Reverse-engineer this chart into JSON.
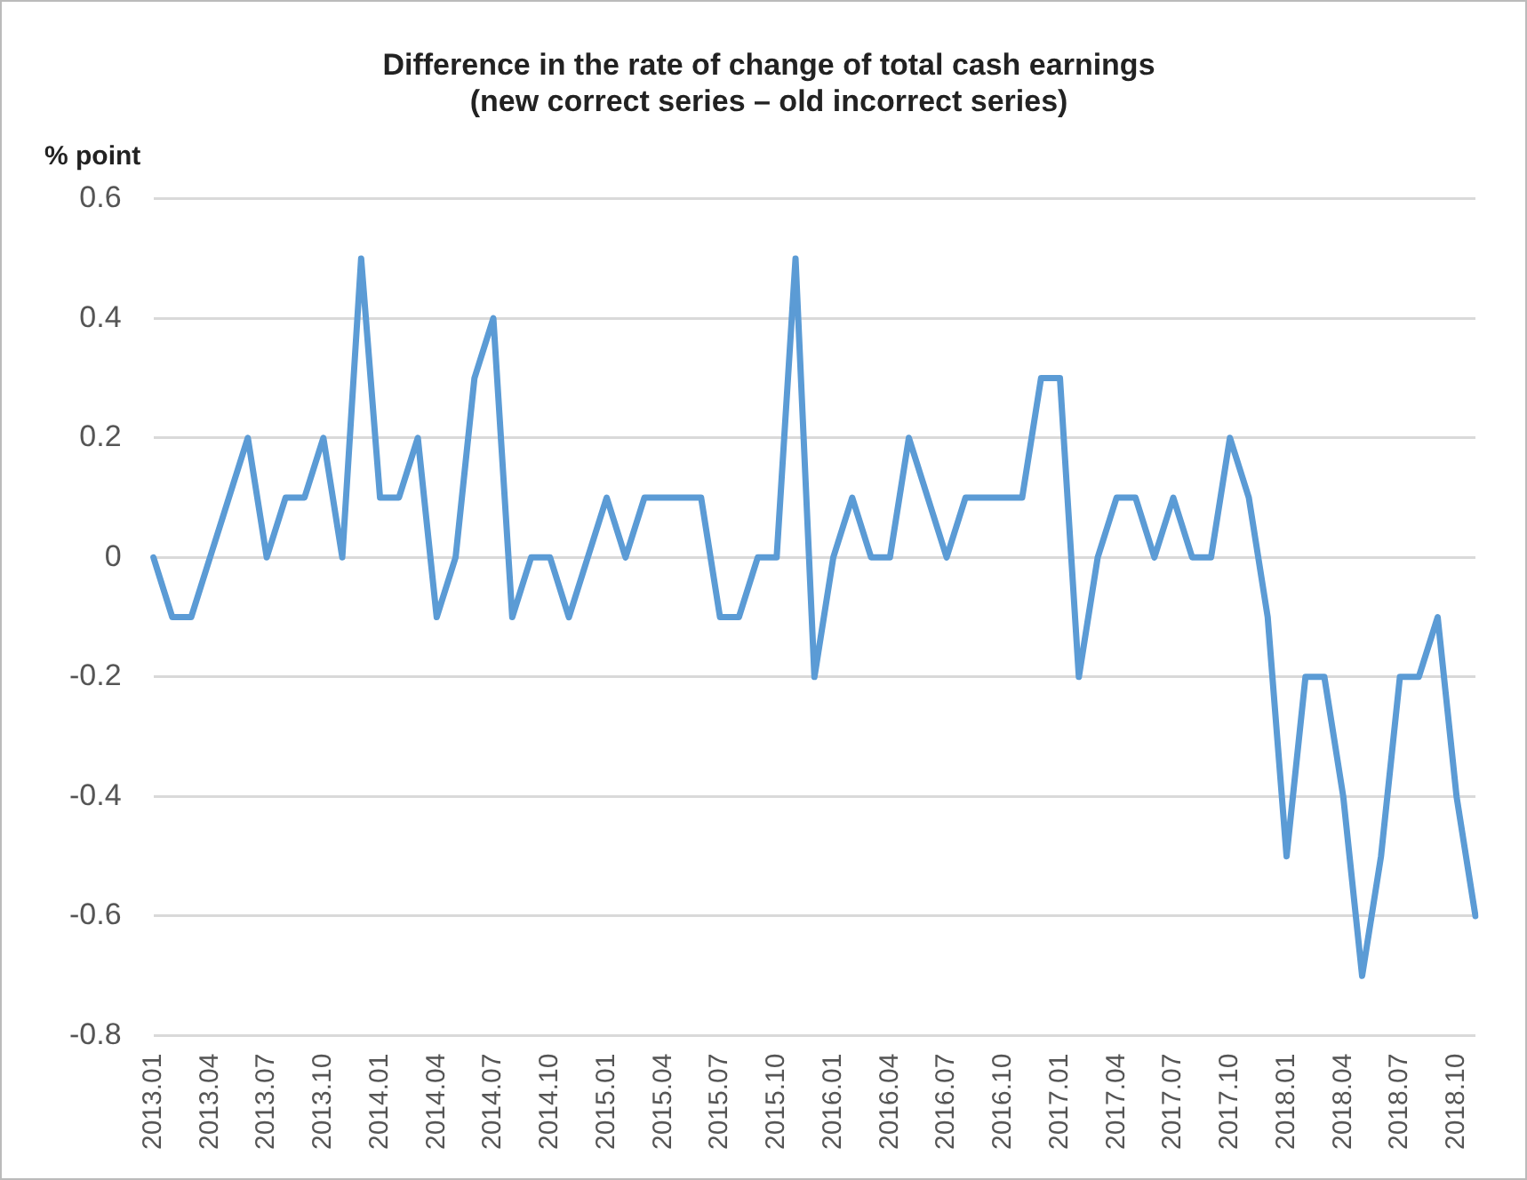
{
  "chart_data": {
    "type": "line",
    "title": "Difference in the rate of change of total cash earnings\n(new correct series – old incorrect series)",
    "ylabel": "% point",
    "categories": [
      "2013.01",
      null,
      null,
      "2013.04",
      null,
      null,
      "2013.07",
      null,
      null,
      "2013.10",
      null,
      null,
      "2014.01",
      null,
      null,
      "2014.04",
      null,
      null,
      "2014.07",
      null,
      null,
      "2014.10",
      null,
      null,
      "2015.01",
      null,
      null,
      "2015.04",
      null,
      null,
      "2015.07",
      null,
      null,
      "2015.10",
      null,
      null,
      "2016.01",
      null,
      null,
      "2016.04",
      null,
      null,
      "2016.07",
      null,
      null,
      "2016.10",
      null,
      null,
      "2017.01",
      null,
      null,
      "2017.04",
      null,
      null,
      "2017.07",
      null,
      null,
      "2017.10",
      null,
      null,
      "2018.01",
      null,
      null,
      "2018.04",
      null,
      null,
      "2018.07",
      null,
      null,
      "2018.10",
      null
    ],
    "series": [
      {
        "color": "#5b9bd5",
        "values": [
          0,
          -0.1,
          -0.1,
          0,
          0.1,
          0.2,
          0,
          0.1,
          0.1,
          0.2,
          0,
          0.5,
          0.1,
          0.1,
          0.2,
          -0.1,
          0,
          0.3,
          0.4,
          -0.1,
          0,
          0,
          -0.1,
          0,
          0.1,
          0,
          0.1,
          0.1,
          0.1,
          0.1,
          -0.1,
          -0.1,
          0,
          0,
          0.5,
          -0.2,
          0,
          0.1,
          0,
          0,
          0.2,
          0.1,
          0,
          0.1,
          0.1,
          0.1,
          0.1,
          0.3,
          0.3,
          -0.2,
          0,
          0.1,
          0.1,
          0,
          0.1,
          0,
          0,
          0.2,
          0.1,
          -0.1,
          -0.5,
          -0.2,
          -0.2,
          -0.4,
          -0.7,
          -0.5,
          -0.2,
          -0.2,
          -0.1,
          -0.4,
          -0.6
        ]
      }
    ],
    "ylim": [
      -0.8,
      0.6
    ],
    "yticks": [
      -0.8,
      -0.6,
      -0.4,
      -0.2,
      0,
      0.2,
      0.4,
      0.6
    ],
    "grid": "y",
    "legend": false,
    "marker": "none",
    "line_style": "solid"
  }
}
